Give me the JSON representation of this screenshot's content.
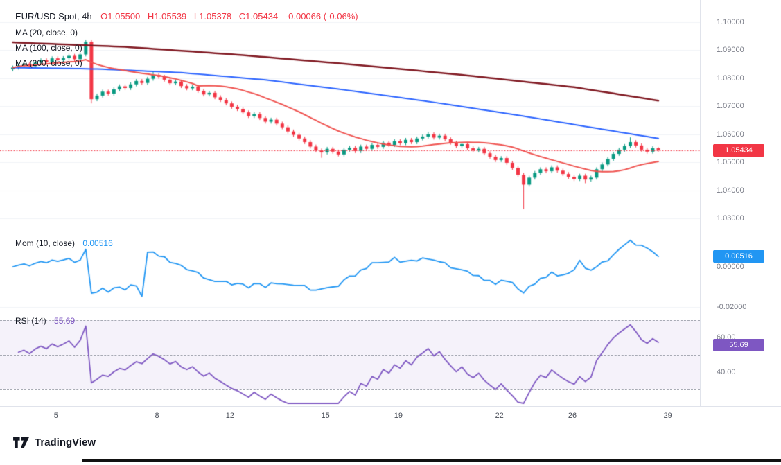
{
  "header": {
    "symbol_title": "EUR/USD Spot, 4h",
    "open": "O1.05500",
    "high": "H1.05539",
    "low": "L1.05378",
    "close": "C1.05434",
    "change": "-0.00066 (-0.06%)"
  },
  "legends": {
    "ma20": "MA (20, close, 0)",
    "ma100": "MA (100, close, 0)",
    "ma200": "MA (200, close, 0)",
    "mom_label": "Mom (10, close)",
    "mom_value": "0.00516",
    "rsi_label": "RSI (14)",
    "rsi_value": "55.69"
  },
  "axes": {
    "price_labels": [
      "1.10000",
      "1.09000",
      "1.08000",
      "1.07000",
      "1.06000",
      "1.05000",
      "1.04000",
      "1.03000"
    ],
    "mom_labels": [
      {
        "text": "0.00000",
        "value": 0
      },
      {
        "text": "-0.02000",
        "value": -0.02
      }
    ],
    "rsi_labels": [
      {
        "text": "60.00",
        "value": 60
      },
      {
        "text": "40.00",
        "value": 40
      }
    ],
    "time_labels": [
      {
        "text": "5",
        "index": 8
      },
      {
        "text": "8",
        "index": 26
      },
      {
        "text": "12",
        "index": 39
      },
      {
        "text": "15",
        "index": 56
      },
      {
        "text": "19",
        "index": 69
      },
      {
        "text": "22",
        "index": 87
      },
      {
        "text": "26",
        "index": 100
      },
      {
        "text": "29",
        "index": 117
      }
    ]
  },
  "badges": {
    "price": {
      "text": "1.05434",
      "value": 1.05434
    },
    "momentum": {
      "text": "0.00516",
      "value": 0.00516
    },
    "rsi": {
      "text": "55.69",
      "value": 55.69
    }
  },
  "logo": {
    "text": "TradingView"
  },
  "chart_data": {
    "type": "candlestick",
    "symbol": "EUR/USD Spot",
    "interval": "4h",
    "last_candle": {
      "open": 1.055,
      "high": 1.05539,
      "low": 1.05378,
      "close": 1.05434,
      "change": -0.00066,
      "change_pct": "-0.06%"
    },
    "y_axis": {
      "min": 1.03,
      "max": 1.1,
      "tick": 0.01
    },
    "colors": {
      "up": "#089981",
      "down": "#f23645"
    },
    "closes": [
      1.0838,
      1.0846,
      1.0852,
      1.0843,
      1.0856,
      1.0864,
      1.0858,
      1.0871,
      1.0865,
      1.0872,
      1.088,
      1.0868,
      1.0885,
      1.093,
      1.0725,
      1.0738,
      1.0752,
      1.0745,
      1.076,
      1.0771,
      1.0765,
      1.0778,
      1.079,
      1.0783,
      1.0798,
      1.0812,
      1.0805,
      1.0795,
      1.0782,
      1.0788,
      1.0772,
      1.0764,
      1.077,
      1.0755,
      1.0742,
      1.0748,
      1.0732,
      1.0722,
      1.071,
      1.0698,
      1.069,
      1.0678,
      1.0665,
      1.0672,
      1.0658,
      1.0645,
      1.0652,
      1.0638,
      1.0625,
      1.061,
      1.0598,
      1.0585,
      1.0572,
      1.0556,
      1.0542,
      1.0535,
      1.0548,
      1.0538,
      1.0528,
      1.0545,
      1.0552,
      1.054,
      1.0556,
      1.0548,
      1.0562,
      1.0555,
      1.057,
      1.0562,
      1.0575,
      1.0568,
      1.058,
      1.0572,
      1.0585,
      1.0592,
      1.06,
      1.0588,
      1.0595,
      1.0582,
      1.057,
      1.0558,
      1.0565,
      1.055,
      1.0542,
      1.0548,
      1.0532,
      1.052,
      1.0508,
      1.0515,
      1.0498,
      1.048,
      1.0455,
      1.042,
      1.0445,
      1.0462,
      1.0475,
      1.0468,
      1.0482,
      1.047,
      1.0458,
      1.0448,
      1.044,
      1.0452,
      1.0438,
      1.0445,
      1.0475,
      1.0492,
      1.0512,
      1.053,
      1.0545,
      1.0558,
      1.0572,
      1.056,
      1.0545,
      1.0538,
      1.055,
      1.05434
    ],
    "wick_overrides": {
      "13": {
        "h": 1.0937
      },
      "14": {
        "l": 1.071
      },
      "25": {
        "h": 1.0825
      },
      "55": {
        "l": 1.0516
      },
      "74": {
        "h": 1.0609
      },
      "91": {
        "l": 1.0333
      },
      "102": {
        "l": 1.0425
      },
      "110": {
        "h": 1.0589
      },
      "115": {
        "h": 1.05539,
        "l": 1.05378
      }
    },
    "overlays": [
      {
        "name": "MA",
        "period": 20,
        "source": "close",
        "offset": 0,
        "color": "#ef5350",
        "computed": "sma_of_closes"
      },
      {
        "name": "MA",
        "period": 100,
        "source": "close",
        "offset": 0,
        "color": "#2962ff",
        "points": [
          [
            0,
            1.0838
          ],
          [
            15,
            1.0833
          ],
          [
            30,
            1.082
          ],
          [
            45,
            1.0794
          ],
          [
            60,
            1.0756
          ],
          [
            75,
            1.0714
          ],
          [
            90,
            1.0668
          ],
          [
            105,
            1.0618
          ],
          [
            115,
            1.0585
          ]
        ]
      },
      {
        "name": "MA",
        "period": 200,
        "source": "close",
        "offset": 0,
        "color": "#801922",
        "points": [
          [
            0,
            1.0928
          ],
          [
            20,
            1.0912
          ],
          [
            40,
            1.0884
          ],
          [
            60,
            1.085
          ],
          [
            80,
            1.0812
          ],
          [
            100,
            1.0768
          ],
          [
            115,
            1.072
          ]
        ]
      }
    ],
    "panes": [
      {
        "indicator": "Momentum",
        "period": 10,
        "source": "close",
        "last": 0.00516,
        "color": "#2196f3",
        "zero_line": 0,
        "axis_min": -0.02
      },
      {
        "indicator": "RSI",
        "period": 14,
        "last": 55.69,
        "color": "#7e57c2",
        "band_lines": [
          70,
          50,
          30
        ],
        "shaded_range": [
          30,
          70
        ]
      }
    ]
  }
}
